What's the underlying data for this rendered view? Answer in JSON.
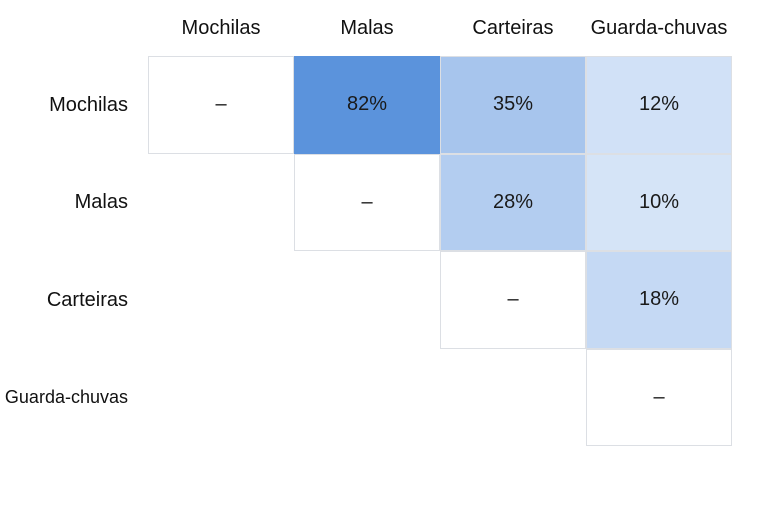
{
  "chart_data": {
    "type": "heatmap",
    "rows": [
      "Mochilas",
      "Malas",
      "Carteiras",
      "Guarda-chuvas"
    ],
    "columns": [
      "Mochilas",
      "Malas",
      "Carteiras",
      "Guarda-chuvas"
    ],
    "cells": [
      {
        "row": 0,
        "col": 0,
        "value": null,
        "label": "–"
      },
      {
        "row": 0,
        "col": 1,
        "value": 82,
        "label": "82%"
      },
      {
        "row": 0,
        "col": 2,
        "value": 35,
        "label": "35%"
      },
      {
        "row": 0,
        "col": 3,
        "value": 12,
        "label": "12%"
      },
      {
        "row": 1,
        "col": 1,
        "value": null,
        "label": "–"
      },
      {
        "row": 1,
        "col": 2,
        "value": 28,
        "label": "28%"
      },
      {
        "row": 1,
        "col": 3,
        "value": 10,
        "label": "10%"
      },
      {
        "row": 2,
        "col": 2,
        "value": null,
        "label": "–"
      },
      {
        "row": 2,
        "col": 3,
        "value": 18,
        "label": "18%"
      },
      {
        "row": 3,
        "col": 3,
        "value": null,
        "label": "–"
      }
    ],
    "value_range": [
      0,
      100
    ],
    "color_low": "#eef4fd",
    "color_high": "#5b93dc",
    "grid": false,
    "legend": "none"
  }
}
